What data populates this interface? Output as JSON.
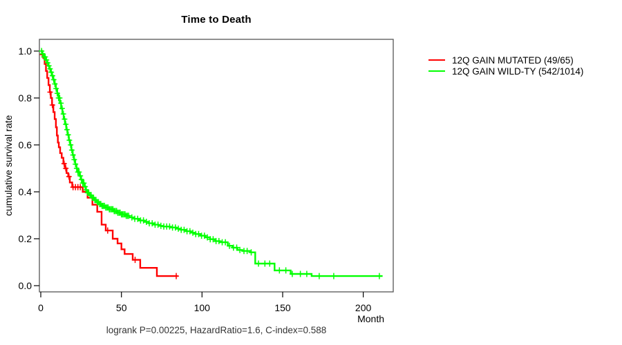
{
  "title": "Time to Death",
  "annotation": "logrank P=0.00225, HazardRatio=1.6, C-index=0.588",
  "x_axis": {
    "label": "Month",
    "ticks": [
      0,
      50,
      100,
      150,
      200
    ],
    "range": [
      0,
      218
    ]
  },
  "y_axis": {
    "label": "cumulative survival rate",
    "ticks": [
      "0.0",
      "0.2",
      "0.4",
      "0.6",
      "0.8",
      "1.0"
    ],
    "range": [
      0,
      1
    ]
  },
  "legend": [
    {
      "label": "12Q GAIN MUTATED (49/65)",
      "color": "#ff0000"
    },
    {
      "label": "12Q GAIN WILD-TY (542/1014)",
      "color": "#00ff00"
    }
  ],
  "chart_data": {
    "type": "line",
    "subtype": "kaplan-meier-step",
    "title": "Time to Death",
    "xlabel": "Month",
    "ylabel": "cumulative survival rate",
    "xlim": [
      0,
      218
    ],
    "ylim": [
      0,
      1.04
    ],
    "grid": false,
    "legend_position": "top-right-outside",
    "series": [
      {
        "name": "12Q GAIN MUTATED (49/65)",
        "color": "#ff0000",
        "x": [
          0,
          0.8,
          1.6,
          2.4,
          3.2,
          4,
          4.8,
          5.6,
          6.2,
          7,
          7.8,
          8.6,
          9.4,
          10,
          10.6,
          11.2,
          12,
          13,
          14,
          15,
          16,
          17,
          18,
          19.5,
          26,
          29,
          32,
          35,
          37.7,
          40.3,
          44.6,
          47.6,
          50,
          52,
          57,
          61.7,
          72,
          85
        ],
        "y": [
          1.0,
          0.985,
          0.97,
          0.945,
          0.915,
          0.885,
          0.855,
          0.825,
          0.8,
          0.77,
          0.74,
          0.71,
          0.675,
          0.64,
          0.61,
          0.59,
          0.565,
          0.545,
          0.52,
          0.5,
          0.48,
          0.465,
          0.44,
          0.42,
          0.4,
          0.375,
          0.345,
          0.315,
          0.26,
          0.235,
          0.2,
          0.18,
          0.155,
          0.135,
          0.11,
          0.076,
          0.041,
          0.041
        ],
        "censor_x": [
          1,
          5.8,
          7.2,
          14.5,
          15.5,
          17.5,
          20,
          21.5,
          23,
          24.5,
          41.5,
          58.5,
          84
        ]
      },
      {
        "name": "12Q GAIN WILD-TY (542/1014)",
        "color": "#00ff00",
        "x": [
          0,
          1,
          2,
          3,
          3.8,
          4.6,
          5.4,
          6.2,
          7,
          7.8,
          8.6,
          9.4,
          10.2,
          11,
          11.8,
          12.6,
          13.4,
          14.2,
          15,
          15.8,
          16.6,
          17.4,
          18.2,
          19,
          19.8,
          20.6,
          21.4,
          22.2,
          23,
          24,
          25,
          26,
          27,
          28,
          29,
          30,
          31.5,
          33,
          34.5,
          36,
          38,
          40,
          42.5,
          45,
          47.5,
          50,
          52.5,
          55,
          58,
          61,
          64,
          67,
          70,
          73,
          76,
          80,
          84,
          87,
          90,
          93,
          96,
          99,
          102,
          105,
          108,
          111,
          116,
          119,
          122,
          125,
          130,
          133,
          145,
          155,
          168,
          212
        ],
        "y": [
          1.0,
          0.988,
          0.975,
          0.962,
          0.95,
          0.937,
          0.924,
          0.91,
          0.895,
          0.878,
          0.86,
          0.84,
          0.82,
          0.8,
          0.778,
          0.755,
          0.732,
          0.71,
          0.688,
          0.665,
          0.643,
          0.62,
          0.6,
          0.578,
          0.557,
          0.537,
          0.518,
          0.5,
          0.484,
          0.468,
          0.452,
          0.437,
          0.422,
          0.408,
          0.396,
          0.386,
          0.375,
          0.365,
          0.356,
          0.348,
          0.34,
          0.333,
          0.326,
          0.318,
          0.311,
          0.304,
          0.298,
          0.291,
          0.285,
          0.278,
          0.272,
          0.266,
          0.26,
          0.255,
          0.252,
          0.248,
          0.243,
          0.238,
          0.232,
          0.226,
          0.22,
          0.213,
          0.206,
          0.198,
          0.19,
          0.185,
          0.17,
          0.162,
          0.152,
          0.148,
          0.142,
          0.094,
          0.065,
          0.05,
          0.041,
          0.041
        ],
        "censor_x": [
          0.5,
          1.25,
          2,
          2.75,
          3.5,
          4.25,
          5,
          5.75,
          6.5,
          7.25,
          8,
          8.75,
          9.5,
          10.25,
          11,
          11.75,
          12.5,
          13.25,
          14,
          14.75,
          15.5,
          16.25,
          17,
          17.75,
          18.5,
          19.25,
          20,
          20.75,
          21.5,
          22.25,
          23,
          23.75,
          24.5,
          25.25,
          26,
          26.75,
          27.5,
          28.25,
          29,
          29.75,
          30.5,
          31.25,
          32,
          32.75,
          33.5,
          34.25,
          35,
          35.75,
          36.5,
          37.25,
          38,
          38.75,
          39.5,
          40.25,
          41,
          41.75,
          42.5,
          43.25,
          44,
          44.75,
          45.5,
          46.25,
          47,
          47.75,
          48.5,
          49.25,
          50,
          50.75,
          51.5,
          52.25,
          53,
          53.75,
          54.5,
          56.5,
          58.3,
          60.1,
          61.9,
          63.7,
          65.5,
          67.3,
          69.1,
          70.9,
          72.7,
          74.5,
          76.3,
          78.1,
          79.9,
          81.7,
          83.5,
          85.3,
          87.1,
          88.9,
          90.7,
          92.5,
          94.3,
          96.1,
          97.9,
          99.7,
          101.5,
          103.3,
          105.1,
          106.9,
          108.7,
          110.5,
          112.5,
          114.5,
          117,
          119.5,
          121.5,
          123.5,
          126,
          128,
          130.5,
          135,
          139,
          142,
          148,
          152,
          156,
          161,
          165,
          172.7,
          181.7,
          210
        ]
      }
    ]
  }
}
